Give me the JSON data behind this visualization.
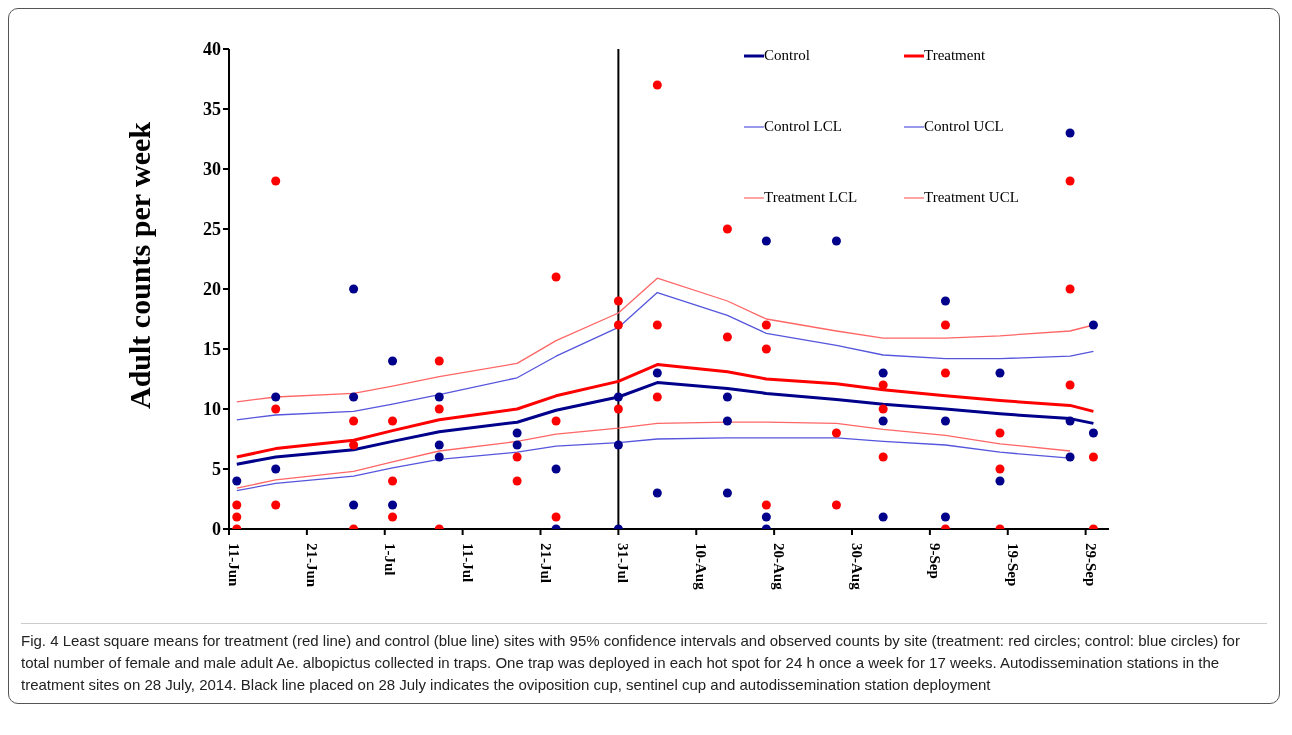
{
  "chart_data": {
    "type": "line",
    "ylabel": "Adult counts per week",
    "x": [
      "2014-06-12",
      "2014-06-17",
      "2014-06-27",
      "2014-07-02",
      "2014-07-08",
      "2014-07-18",
      "2014-07-23",
      "2014-07-31",
      "2014-08-05",
      "2014-08-14",
      "2014-08-19",
      "2014-08-28",
      "2014-09-03",
      "2014-09-11",
      "2014-09-18",
      "2014-09-27",
      "2014-09-30"
    ],
    "series": [
      {
        "name": "Control",
        "color": "#00008b",
        "values": [
          5.4,
          6.0,
          6.6,
          7.3,
          8.1,
          8.9,
          9.9,
          11.0,
          12.2,
          11.7,
          11.3,
          10.8,
          10.4,
          10.0,
          9.6,
          9.2,
          8.8
        ]
      },
      {
        "name": "Treatment",
        "color": "#ff0000",
        "values": [
          6.0,
          6.7,
          7.4,
          8.2,
          9.1,
          10.0,
          11.1,
          12.3,
          13.7,
          13.1,
          12.5,
          12.1,
          11.6,
          11.1,
          10.7,
          10.3,
          9.8
        ]
      },
      {
        "name": "Control LCL",
        "color": "#5555dd",
        "values": [
          3.2,
          3.8,
          4.4,
          5.1,
          5.8,
          6.4,
          6.9,
          7.2,
          7.5,
          7.6,
          7.6,
          7.6,
          7.3,
          7.0,
          6.4,
          5.9,
          null
        ]
      },
      {
        "name": "Control UCL",
        "color": "#5555dd",
        "values": [
          9.1,
          9.5,
          9.8,
          10.4,
          11.2,
          12.6,
          14.4,
          16.8,
          19.7,
          17.8,
          16.3,
          15.3,
          14.5,
          14.2,
          14.2,
          14.4,
          14.8
        ]
      },
      {
        "name": "Treatment LCL",
        "color": "#ff6666",
        "values": [
          3.4,
          4.1,
          4.8,
          5.6,
          6.5,
          7.3,
          7.9,
          8.4,
          8.8,
          8.9,
          8.9,
          8.8,
          8.3,
          7.8,
          7.1,
          6.5,
          null
        ]
      },
      {
        "name": "Treatment UCL",
        "color": "#ff6666",
        "values": [
          10.6,
          11.0,
          11.3,
          11.9,
          12.7,
          13.8,
          15.7,
          18.0,
          20.9,
          19.0,
          17.5,
          16.5,
          15.9,
          15.9,
          16.1,
          16.5,
          17.0
        ]
      },
      {
        "type": "scatter",
        "color": "#00008b",
        "marker": "circle",
        "x": [
          "2014-06-12",
          "2014-06-17",
          "2014-06-17",
          "2014-06-27",
          "2014-06-27",
          "2014-06-27",
          "2014-07-02",
          "2014-07-02",
          "2014-07-08",
          "2014-07-08",
          "2014-07-08",
          "2014-07-18",
          "2014-07-18",
          "2014-07-23",
          "2014-07-23",
          "2014-07-31",
          "2014-07-31",
          "2014-07-31",
          "2014-08-05",
          "2014-08-05",
          "2014-08-14",
          "2014-08-14",
          "2014-08-14",
          "2014-08-19",
          "2014-08-19",
          "2014-08-19",
          "2014-08-28",
          "2014-09-03",
          "2014-09-03",
          "2014-09-03",
          "2014-09-11",
          "2014-09-11",
          "2014-09-11",
          "2014-09-18",
          "2014-09-18",
          "2014-09-27",
          "2014-09-27",
          "2014-09-27",
          "2014-09-30",
          "2014-09-30"
        ],
        "values": [
          4,
          11,
          5,
          20,
          11,
          2,
          14,
          2,
          11,
          7,
          6,
          8,
          7,
          5,
          0,
          11,
          7,
          0,
          13,
          3,
          11,
          9,
          3,
          24,
          1,
          0,
          24,
          13,
          9,
          1,
          19,
          9,
          1,
          13,
          4,
          33,
          9,
          6,
          17,
          8
        ]
      },
      {
        "type": "scatter",
        "color": "#ff0000",
        "marker": "circle",
        "x": [
          "2014-06-12",
          "2014-06-12",
          "2014-06-12",
          "2014-06-17",
          "2014-06-17",
          "2014-06-17",
          "2014-06-27",
          "2014-06-27",
          "2014-06-27",
          "2014-07-02",
          "2014-07-02",
          "2014-07-02",
          "2014-07-08",
          "2014-07-08",
          "2014-07-08",
          "2014-07-18",
          "2014-07-18",
          "2014-07-23",
          "2014-07-23",
          "2014-07-23",
          "2014-07-31",
          "2014-07-31",
          "2014-07-31",
          "2014-08-05",
          "2014-08-05",
          "2014-08-05",
          "2014-08-14",
          "2014-08-14",
          "2014-08-19",
          "2014-08-19",
          "2014-08-19",
          "2014-08-28",
          "2014-08-28",
          "2014-09-03",
          "2014-09-03",
          "2014-09-03",
          "2014-09-11",
          "2014-09-11",
          "2014-09-11",
          "2014-09-18",
          "2014-09-18",
          "2014-09-18",
          "2014-09-27",
          "2014-09-27",
          "2014-09-27",
          "2014-09-30",
          "2014-09-30"
        ],
        "values": [
          2,
          1,
          0,
          29,
          10,
          2,
          9,
          7,
          0,
          9,
          4,
          1,
          14,
          10,
          0,
          6,
          4,
          21,
          9,
          1,
          19,
          17,
          10,
          37,
          17,
          11,
          25,
          16,
          17,
          15,
          2,
          8,
          2,
          12,
          10,
          6,
          17,
          13,
          0,
          8,
          5,
          0,
          29,
          20,
          12,
          6,
          0
        ]
      }
    ],
    "xlim": [
      "2014-06-11",
      "2014-10-02"
    ],
    "xticks": [
      {
        "value": "2014-06-11",
        "label": "11-Jun"
      },
      {
        "value": "2014-06-21",
        "label": "21-Jun"
      },
      {
        "value": "2014-07-01",
        "label": "1-Jul"
      },
      {
        "value": "2014-07-11",
        "label": "11-Jul"
      },
      {
        "value": "2014-07-21",
        "label": "21-Jul"
      },
      {
        "value": "2014-07-31",
        "label": "31-Jul"
      },
      {
        "value": "2014-08-10",
        "label": "10-Aug"
      },
      {
        "value": "2014-08-20",
        "label": "20-Aug"
      },
      {
        "value": "2014-08-30",
        "label": "30-Aug"
      },
      {
        "value": "2014-09-09",
        "label": "9-Sep"
      },
      {
        "value": "2014-09-19",
        "label": "19-Sep"
      },
      {
        "value": "2014-09-29",
        "label": "29-Sep"
      }
    ],
    "ylim": [
      0,
      40
    ],
    "yticks": [
      0,
      5,
      10,
      15,
      20,
      25,
      30,
      35,
      40
    ],
    "ref_lines": [
      {
        "axis": "x",
        "value": "2014-07-31",
        "color": "#000000"
      }
    ],
    "grid": false,
    "legend": "top right",
    "marker": "none",
    "line_style": "solid",
    "annotations": [
      "Fig. 4 Least square means for treatment (red line) and control (blue line) sites with 95% confidence intervals and observed counts by site (treatment: red circles; control: blue circles) for total number of female and male adult Ae. albopictus collected in traps. One trap was deployed in each hot spot for 24 h once a week for 17 weeks. Autodissemination stations in the treatment sites on 28 July, 2014. Black line placed on 28 July indicates the oviposition cup, sentinel cup and autodissemination station deployment"
    ]
  }
}
